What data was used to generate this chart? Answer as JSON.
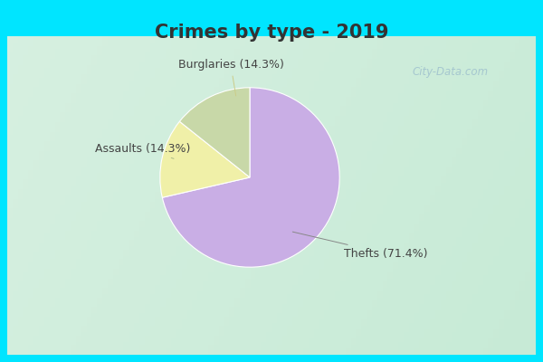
{
  "title": "Crimes by type - 2019",
  "slices": [
    {
      "label": "Thefts",
      "pct": 71.4,
      "color": "#c9aee5"
    },
    {
      "label": "Burglaries",
      "pct": 14.3,
      "color": "#f0f0a8"
    },
    {
      "label": "Assaults",
      "pct": 14.3,
      "color": "#c8d8a8"
    }
  ],
  "background_cyan": "#00e5ff",
  "background_main": "#ddf0e8",
  "title_fontsize": 15,
  "label_fontsize": 9,
  "watermark": "City-Data.com",
  "title_color": "#333333"
}
